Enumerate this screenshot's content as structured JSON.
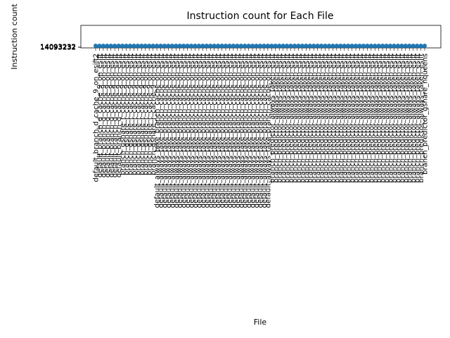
{
  "chart_data": {
    "type": "line",
    "title": "Instruction count for Each File",
    "xlabel": "File",
    "ylabel": "Instruction count",
    "series_color": "#1f77b4",
    "grid": false,
    "legend": "none",
    "categories": [
      "default_branch_d_cache_9_on_esift2",
      "default_branch_d_cache_9_on_esift",
      "default_branch_d_cache_9_on_esift",
      "default_branch_d_cache_9_on_esift",
      "default_branch_d_cache_9_on_esift",
      "default_branch_d_cache_9_on_esift",
      "default_branch_d_cache_9_on_esift",
      "branch_gshare_r_cache_9_on_esift",
      "branch_gshare_r_cache_9_on_esift",
      "branch_gshare_r_cache_9_on_esift",
      "branch_gshare_r_cache_9_on_esift",
      "branch_gshare_r_cache_9_on_esift",
      "branch_gshare_r_cache_9_on_esift",
      "branch_gshare_r_cache_9_on_esift",
      "branch_gshare_r_cache_9_on_esift",
      "branch_gshare_r_cache_9_on_esift",
      "default_always_take_branch_cache_on_esift",
      "default_always_take_branch_cache_on_esift",
      "default_always_take_branch_cache_on_esift",
      "default_always_take_branch_cache_on_esift",
      "default_always_take_branch_cache_on_esift",
      "default_always_take_branch_cache_on_esift",
      "default_always_take_branch_cache_on_esift",
      "default_always_take_branch_cache_on_esift",
      "default_always_take_branch_cache_on_esift",
      "default_always_take_branch_cache_on_esift",
      "default_always_take_branch_cache_on_esift",
      "default_always_take_branch_cache_on_esift",
      "default_always_take_branch_cache_on_esift",
      "default_always_take_branch_cache_on_esift",
      "default_always_take_branch_cache_on_esift",
      "default_always_take_branch_cache_on_esift",
      "default_always_take_branch_cache_on_esift",
      "default_always_take_branch_cache_on_esift",
      "default_always_take_branch_cache_on_esift",
      "default_always_take_branch_cache_on_esift",
      "default_always_take_branch_cache_on_esift",
      "default_always_take_branch_cache_on_esift",
      "default_always_take_branch_cache_on_esift",
      "default_always_take_branch_cache_on_esift",
      "default_always_take_branch_cache_on_esift",
      "default_always_take_branch_cache_on_esift",
      "default_always_take_branch_cache_on_esift",
      "default_always_take_branch_cache_on_esift",
      "default_always_take_branch_cache_on_esift",
      "default_always_take_branch_cache_on_esift",
      "branch_predictor_always_taken_esift",
      "branch_predictor_always_taken_esift",
      "branch_predictor_always_taken_esift",
      "branch_predictor_always_taken_esift",
      "branch_predictor_always_taken_esift",
      "branch_predictor_always_taken_esift",
      "branch_predictor_always_taken_esift",
      "branch_predictor_always_taken_esift",
      "branch_predictor_always_taken_esift",
      "branch_predictor_always_taken_esift",
      "branch_predictor_always_taken_esift",
      "branch_predictor_always_taken_esift",
      "branch_predictor_always_taken_esift",
      "branch_predictor_always_taken_esift",
      "branch_predictor_always_taken_esift",
      "branch_predictor_always_taken_esift",
      "branch_predictor_always_taken_esift",
      "branch_predictor_always_taken_esift",
      "branch_predictor_always_taken_esift",
      "branch_predictor_always_taken_esift",
      "branch_predictor_always_taken_esift",
      "branch_predictor_always_taken_esift",
      "branch_predictor_always_taken_esift",
      "branch_predictor_always_taken_esift",
      "branch_predictor_always_taken_esift",
      "branch_predictor_always_taken_esift",
      "branch_predictor_always_taken_esift",
      "branch_predictor_always_taken_esift",
      "branch_predictor_always_taken_esift",
      "branch_predictor_always_taken_esift",
      "branch_predictor_always_taken_esift",
      "branch_predictor_always_taken_esift",
      "branch_predictor_always_taken_esift",
      "branch_predictor_always_taken_esift",
      "branch_predictor_always_taken_esift",
      "branch_predictor_always_taken_esift",
      "branch_predictor_always_taken_esift",
      "branch_predictor_always_taken_esift",
      "branch_predictor_always_taken_esift",
      "branch_predictor_always_taken_esift",
      "branch_predictor_gshare_nqueens"
    ],
    "values": [
      14093232,
      14093232,
      14093232,
      14093232,
      14093232,
      14093232,
      14093232,
      14093232,
      14093232,
      14093232,
      14093232,
      14093232,
      14093232,
      14093232,
      14093232,
      14093232,
      14093232,
      14093232,
      14093232,
      14093232,
      14093232,
      14093232,
      14093232,
      14093232,
      14093232,
      14093232,
      14093232,
      14093232,
      14093232,
      14093232,
      14093232,
      14093232,
      14093232,
      14093232,
      14093232,
      14093232,
      14093232,
      14093232,
      14093232,
      14093232,
      14093232,
      14093232,
      14093232,
      14093232,
      14093232,
      14093232,
      14093232,
      14093232,
      14093232,
      14093232,
      14093232,
      14093232,
      14093232,
      14093232,
      14093232,
      14093232,
      14093232,
      14093232,
      14093232,
      14093232,
      14093232,
      14093232,
      14093232,
      14093232,
      14093232,
      14093232,
      14093232,
      14093232,
      14093232,
      14093232,
      14093232,
      14093232,
      14093232,
      14093232,
      14093232,
      14093232,
      14093232,
      14093232,
      14093232,
      14093232,
      14093232,
      14093232,
      14093232,
      14093232,
      14093232,
      14093232,
      14093232
    ],
    "ytick_labels": [
      "14093232",
      "14093232",
      "14093232",
      "14093232",
      "14093232",
      "14093232",
      "14093232",
      "14093232",
      "14093232"
    ]
  }
}
